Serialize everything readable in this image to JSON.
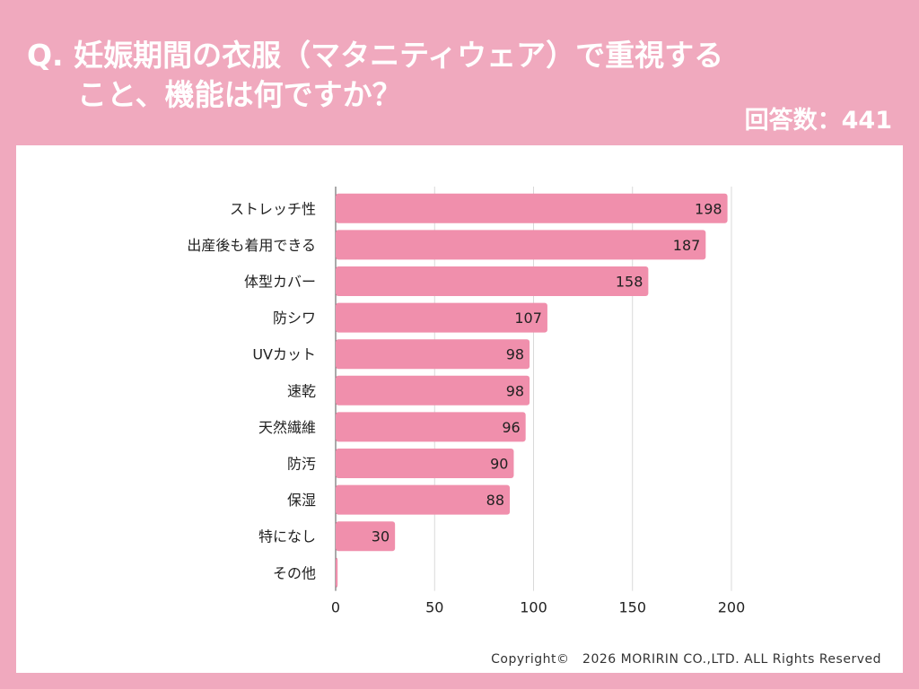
{
  "question": {
    "line1": "Q. 妊娠期間の衣服（マタニティウェア）で重視する",
    "line2": "こと、機能は何ですか？"
  },
  "answer_count": "回答数：441",
  "copyright": "Copyright©　2026 MORIRIN CO.,LTD. ALL Rights Reserved",
  "colors": {
    "background": "#f0a9be",
    "panel": "#ffffff",
    "bar": "#f08fac",
    "grid": "#d9d9d9",
    "axis": "#555555"
  },
  "chart_data": {
    "type": "bar",
    "orientation": "horizontal",
    "categories": [
      "ストレッチ性",
      "出産後も着用できる",
      "体型カバー",
      "防シワ",
      "UVカット",
      "速乾",
      "天然繊維",
      "防汚",
      "保湿",
      "特になし",
      "その他"
    ],
    "values": [
      198,
      187,
      158,
      107,
      98,
      98,
      96,
      90,
      88,
      30,
      1
    ],
    "value_labels": [
      "198",
      "187",
      "158",
      "107",
      "98",
      "98",
      "96",
      "90",
      "88",
      "30",
      ""
    ],
    "xlim": [
      0,
      200
    ],
    "xticks": [
      0,
      50,
      100,
      150,
      200
    ],
    "grid": true,
    "title": "",
    "xlabel": "",
    "ylabel": ""
  }
}
